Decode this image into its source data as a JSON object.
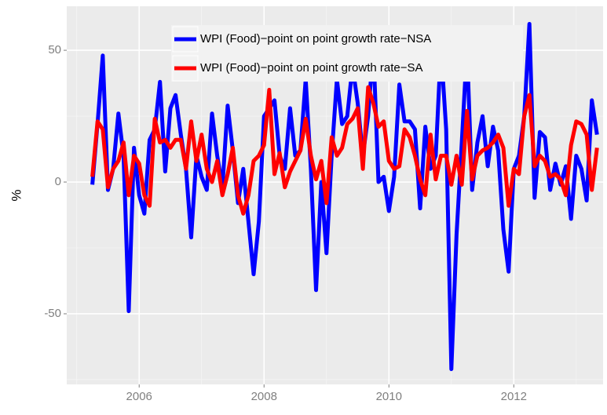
{
  "chart_data": {
    "type": "line",
    "y_label": "%",
    "xlim": [
      2004.84,
      2013.43
    ],
    "ylim": [
      -76.8,
      66.7
    ],
    "xticks": [
      2006,
      2008,
      2010,
      2012
    ],
    "yticks": [
      -50,
      0,
      50
    ],
    "grid": true,
    "legend": "top",
    "x": [
      2005.25,
      2005.333,
      2005.417,
      2005.5,
      2005.583,
      2005.667,
      2005.75,
      2005.833,
      2005.917,
      2006,
      2006.083,
      2006.167,
      2006.25,
      2006.333,
      2006.417,
      2006.5,
      2006.583,
      2006.667,
      2006.75,
      2006.833,
      2006.917,
      2007,
      2007.083,
      2007.167,
      2007.25,
      2007.333,
      2007.417,
      2007.5,
      2007.583,
      2007.667,
      2007.75,
      2007.833,
      2007.917,
      2008,
      2008.083,
      2008.167,
      2008.25,
      2008.333,
      2008.417,
      2008.5,
      2008.583,
      2008.667,
      2008.75,
      2008.833,
      2008.917,
      2009,
      2009.083,
      2009.167,
      2009.25,
      2009.333,
      2009.417,
      2009.5,
      2009.583,
      2009.667,
      2009.75,
      2009.833,
      2009.917,
      2010,
      2010.083,
      2010.167,
      2010.25,
      2010.333,
      2010.417,
      2010.5,
      2010.583,
      2010.667,
      2010.75,
      2010.833,
      2010.917,
      2011,
      2011.083,
      2011.167,
      2011.25,
      2011.333,
      2011.417,
      2011.5,
      2011.583,
      2011.667,
      2011.75,
      2011.833,
      2011.917,
      2012,
      2012.083,
      2012.167,
      2012.25,
      2012.333,
      2012.417,
      2012.5,
      2012.583,
      2012.667,
      2012.75,
      2012.833,
      2012.917,
      2013,
      2013.083,
      2013.167,
      2013.25,
      2013.333
    ],
    "series": [
      {
        "name": "WPI (Food)−point on point growth rate−NSA",
        "color": "#0000ff",
        "values": [
          -1,
          22,
          48,
          -3,
          5,
          26,
          10,
          -49,
          13,
          -5,
          -12,
          16,
          20,
          38,
          4,
          28,
          33,
          18,
          5,
          -21,
          10,
          2,
          -3,
          26,
          10,
          -2,
          29,
          12,
          -8,
          5,
          -15,
          -35,
          -15,
          25,
          28,
          31,
          10,
          5,
          28,
          10,
          12,
          39,
          5,
          -41,
          0,
          -27,
          10,
          39,
          22,
          25,
          44,
          30,
          10,
          25,
          51,
          0,
          2,
          -11,
          2,
          37,
          23,
          23,
          20,
          -10,
          21,
          5,
          10,
          51,
          20,
          -71,
          -20,
          15,
          51,
          -3,
          15,
          25,
          6,
          21,
          12,
          -18,
          -34,
          5,
          10,
          25,
          60,
          -6,
          19,
          17,
          -3,
          7,
          -1,
          6,
          -14,
          10,
          5,
          -7,
          31,
          18
        ]
      },
      {
        "name": "WPI (Food)−point on point growth rate−SA",
        "color": "#ff0000",
        "values": [
          2,
          23,
          20,
          -2,
          5,
          8,
          15,
          -5,
          10,
          7,
          -5,
          -9,
          24,
          15,
          16,
          13,
          16,
          16,
          5,
          23,
          8,
          18,
          5,
          0,
          8,
          -5,
          3,
          13,
          -5,
          -12,
          -5,
          8,
          10,
          14,
          35,
          3,
          11,
          -2,
          4,
          8,
          12,
          24,
          10,
          1,
          8,
          -8,
          17,
          10,
          13,
          22,
          24,
          28,
          5,
          36,
          30,
          21,
          23,
          8,
          5,
          6,
          20,
          17,
          10,
          1,
          -5,
          18,
          1,
          10,
          10,
          -1,
          10,
          -1,
          27,
          1,
          10,
          12,
          13,
          15,
          18,
          13,
          -9,
          5,
          3,
          25,
          33,
          6,
          10,
          8,
          2,
          3,
          1,
          -5,
          14,
          23,
          22,
          18,
          -3,
          13
        ]
      }
    ]
  }
}
